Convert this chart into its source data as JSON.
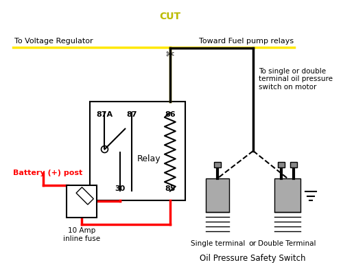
{
  "yellow_wire_color": "#FFE800",
  "red_wire_color": "#FF0000",
  "black_wire_color": "#000000",
  "text_color_black": "#000000",
  "text_color_red": "#FF0000",
  "text_color_yellow": "#BBBB00",
  "bg_color": "#FFFFFF",
  "cut_label": "CUT",
  "voltage_reg_label": "To Voltage Regulator",
  "fuel_pump_label": "Toward Fuel pump relays",
  "battery_post_label": "Battery (+) post",
  "fuse_label": "10 Amp\ninline fuse",
  "oil_switch_label": "To single or double\nterminal oil pressure\nswitch on motor",
  "single_terminal_label": "Single terminal",
  "or_label": "or",
  "double_terminal_label": "Double Terminal",
  "safety_switch_label": "Oil Pressure Safety Switch",
  "relay_label": "Relay",
  "t87a": "87A",
  "t87": "87",
  "t86": "86",
  "t30": "30",
  "t85": "85"
}
